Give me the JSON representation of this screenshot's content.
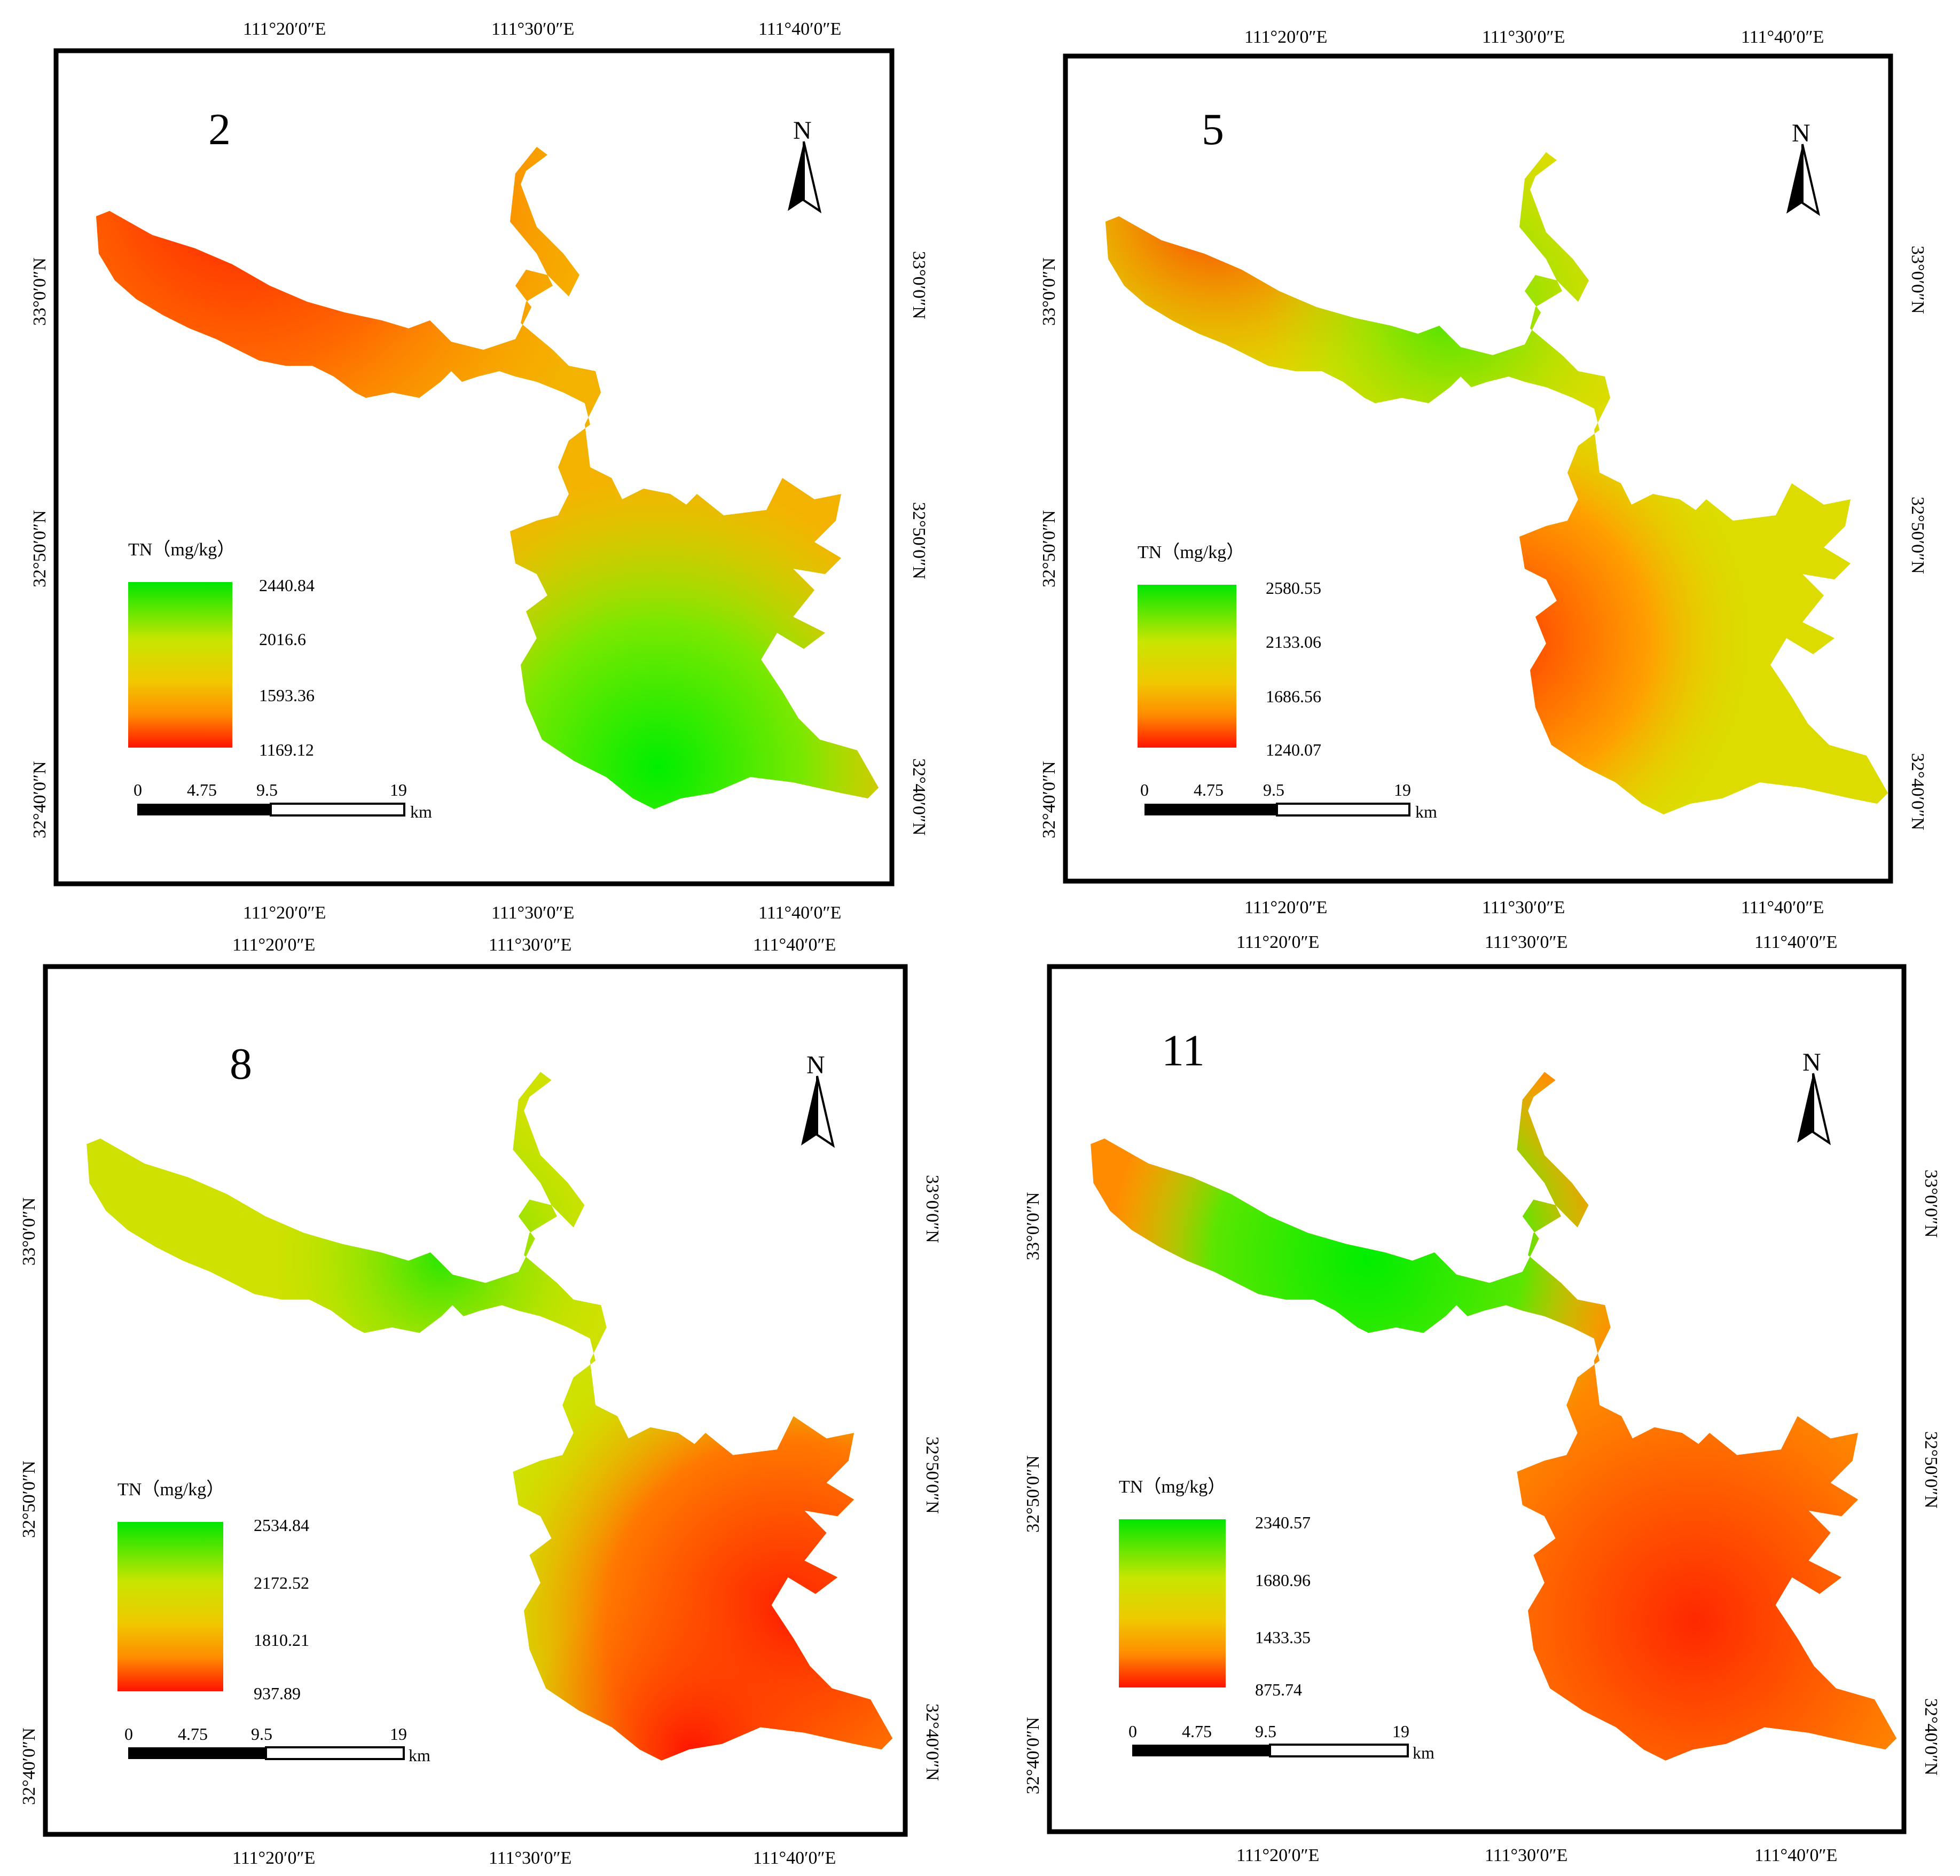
{
  "panels": [
    {
      "id": "p2",
      "number": "2",
      "lon_labels": [
        "111°20′0″E",
        "111°30′0″E",
        "111°40′0″E"
      ],
      "lat_labels": [
        "33°0′0″N",
        "32°50′0″N",
        "32°40′0″N"
      ],
      "legend": {
        "title": "TN（mg/kg）",
        "values": [
          "2440.84",
          "2016.6",
          "1593.36",
          "1169.12"
        ]
      },
      "scale": {
        "ticks": [
          "0",
          "4.75",
          "9.5",
          "19"
        ],
        "unit": "km"
      },
      "north": "N",
      "hotspots": [
        {
          "color": "#ff2a00",
          "label": "upper-west arm"
        },
        {
          "color": "#00ee00",
          "label": "south basin"
        }
      ]
    },
    {
      "id": "p5",
      "number": "5",
      "lon_labels": [
        "111°20′0″E",
        "111°30′0″E",
        "111°40′0″E"
      ],
      "lat_labels": [
        "33°0′0″N",
        "32°50′0″N",
        "32°40′0″N"
      ],
      "legend": {
        "title": "TN（mg/kg）",
        "values": [
          "2580.55",
          "2133.06",
          "1686.56",
          "1240.07"
        ]
      },
      "scale": {
        "ticks": [
          "0",
          "4.75",
          "9.5",
          "19"
        ],
        "unit": "km"
      },
      "north": "N",
      "hotspots": []
    },
    {
      "id": "p8",
      "number": "8",
      "lon_labels": [
        "111°20′0″E",
        "111°30′0″E",
        "111°40′0″E"
      ],
      "lat_labels": [
        "33°0′0″N",
        "32°50′0″N",
        "32°40′0″N"
      ],
      "legend": {
        "title": "TN（mg/kg）",
        "values": [
          "2534.84",
          "2172.52",
          "1810.21",
          "937.89"
        ]
      },
      "scale": {
        "ticks": [
          "0",
          "4.75",
          "9.5",
          "19"
        ],
        "unit": "km"
      },
      "north": "N",
      "hotspots": []
    },
    {
      "id": "p11",
      "number": "11",
      "lon_labels": [
        "111°20′0″E",
        "111°30′0″E",
        "111°40′0″E"
      ],
      "lat_labels": [
        "33°0′0″N",
        "32°50′0″N",
        "32°40′0″N"
      ],
      "legend": {
        "title": "TN（mg/kg）",
        "values": [
          "2340.57",
          "1680.96",
          "1433.35",
          "875.74"
        ]
      },
      "scale": {
        "ticks": [
          "0",
          "4.75",
          "9.5",
          "19"
        ],
        "unit": "km"
      },
      "north": "N",
      "hotspots": []
    }
  ],
  "colors": {
    "high": "#00e600",
    "mid_high": "#c8e600",
    "mid": "#e6d200",
    "mid_low": "#ff9600",
    "low": "#ff1e00"
  }
}
